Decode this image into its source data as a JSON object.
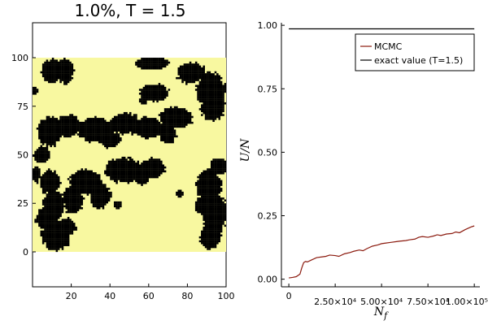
{
  "chart_data": [
    {
      "type": "heatmap",
      "title": "1.0%, T = 1.5",
      "grid_size": 100,
      "colors": {
        "spin_up": "#f8f8a0",
        "spin_down": "#000000"
      },
      "xlim": [
        0,
        100
      ],
      "ylim": [
        -18,
        118
      ],
      "xticks": [
        20,
        40,
        60,
        80,
        100
      ],
      "yticks": [
        0,
        25,
        50,
        75,
        100
      ],
      "xtick_labels": [
        "20",
        "40",
        "60",
        "80",
        "100"
      ],
      "ytick_labels": [
        "0",
        "25",
        "50",
        "75",
        "100"
      ],
      "black_regions": [
        {
          "cx": 10,
          "cy": 93,
          "rx": 5,
          "ry": 6
        },
        {
          "cx": 17,
          "cy": 93,
          "rx": 4,
          "ry": 6
        },
        {
          "cx": 62,
          "cy": 97,
          "rx": 8,
          "ry": 3
        },
        {
          "cx": 82,
          "cy": 92,
          "rx": 7,
          "ry": 5
        },
        {
          "cx": 92,
          "cy": 83,
          "rx": 7,
          "ry": 9
        },
        {
          "cx": 93,
          "cy": 75,
          "rx": 6,
          "ry": 7
        },
        {
          "cx": 63,
          "cy": 82,
          "rx": 7,
          "ry": 4
        },
        {
          "cx": 9,
          "cy": 62,
          "rx": 6,
          "ry": 7
        },
        {
          "cx": 18,
          "cy": 65,
          "rx": 7,
          "ry": 5
        },
        {
          "cx": 33,
          "cy": 63,
          "rx": 9,
          "ry": 6
        },
        {
          "cx": 48,
          "cy": 66,
          "rx": 8,
          "ry": 5
        },
        {
          "cx": 60,
          "cy": 64,
          "rx": 7,
          "ry": 5
        },
        {
          "cx": 74,
          "cy": 69,
          "rx": 8,
          "ry": 5
        },
        {
          "cx": 70,
          "cy": 61,
          "rx": 4,
          "ry": 5
        },
        {
          "cx": 40,
          "cy": 58,
          "rx": 5,
          "ry": 4
        },
        {
          "cx": 5,
          "cy": 50,
          "rx": 4,
          "ry": 4
        },
        {
          "cx": 47,
          "cy": 42,
          "rx": 9,
          "ry": 6
        },
        {
          "cx": 62,
          "cy": 43,
          "rx": 6,
          "ry": 5
        },
        {
          "cx": 56,
          "cy": 39,
          "rx": 4,
          "ry": 4
        },
        {
          "cx": 27,
          "cy": 36,
          "rx": 8,
          "ry": 6
        },
        {
          "cx": 35,
          "cy": 29,
          "rx": 5,
          "ry": 6
        },
        {
          "cx": 21,
          "cy": 27,
          "rx": 5,
          "ry": 7
        },
        {
          "cx": 9,
          "cy": 36,
          "rx": 5,
          "ry": 6
        },
        {
          "cx": 11,
          "cy": 24,
          "rx": 5,
          "ry": 7
        },
        {
          "cx": 12,
          "cy": 9,
          "rx": 7,
          "ry": 8
        },
        {
          "cx": 7,
          "cy": 17,
          "rx": 5,
          "ry": 5
        },
        {
          "cx": 18,
          "cy": 13,
          "rx": 4,
          "ry": 4
        },
        {
          "cx": 91,
          "cy": 34,
          "rx": 6,
          "ry": 8
        },
        {
          "cx": 94,
          "cy": 20,
          "rx": 6,
          "ry": 10
        },
        {
          "cx": 92,
          "cy": 8,
          "rx": 5,
          "ry": 6
        },
        {
          "cx": 96,
          "cy": 44,
          "rx": 4,
          "ry": 4
        },
        {
          "cx": 87,
          "cy": 24,
          "rx": 3,
          "ry": 4
        },
        {
          "cx": 2,
          "cy": 40,
          "rx": 2,
          "ry": 4
        },
        {
          "cx": 1,
          "cy": 83,
          "rx": 1.5,
          "ry": 2
        },
        {
          "cx": 44,
          "cy": 24,
          "rx": 2,
          "ry": 2
        },
        {
          "cx": 76,
          "cy": 30,
          "rx": 2,
          "ry": 2
        },
        {
          "cx": 57,
          "cy": 78,
          "rx": 2,
          "ry": 2
        }
      ]
    },
    {
      "type": "line",
      "xlabel": "N_f",
      "ylabel": "U/N",
      "xlim": [
        -4000,
        103000
      ],
      "ylim": [
        -0.03,
        1.01
      ],
      "xticks": [
        0,
        25000,
        50000,
        75000,
        100000
      ],
      "xtick_labels": [
        "0",
        "2.50×10⁴",
        "5.00×10⁴",
        "7.50×10⁴",
        "1.00×10⁵"
      ],
      "yticks": [
        0.0,
        0.25,
        0.5,
        0.75,
        1.0
      ],
      "ytick_labels": [
        "0.00",
        "0.25",
        "0.50",
        "0.75",
        "1.00"
      ],
      "legend_position": "top-right",
      "series": [
        {
          "name": "MCMC",
          "color": "#8b1a0e",
          "x": [
            0,
            2000,
            4000,
            6000,
            7000,
            8000,
            9000,
            10000,
            12000,
            15000,
            18000,
            20000,
            22000,
            25000,
            27000,
            30000,
            33000,
            35000,
            38000,
            40000,
            42000,
            45000,
            48000,
            50000,
            52000,
            55000,
            58000,
            60000,
            63000,
            65000,
            68000,
            70000,
            72000,
            75000,
            78000,
            80000,
            82000,
            85000,
            88000,
            90000,
            92000,
            95000,
            98000,
            100000
          ],
          "y": [
            0.005,
            0.007,
            0.01,
            0.02,
            0.045,
            0.065,
            0.07,
            0.068,
            0.075,
            0.085,
            0.088,
            0.09,
            0.095,
            0.093,
            0.09,
            0.1,
            0.105,
            0.11,
            0.115,
            0.112,
            0.12,
            0.13,
            0.135,
            0.14,
            0.142,
            0.145,
            0.148,
            0.15,
            0.152,
            0.155,
            0.158,
            0.165,
            0.168,
            0.165,
            0.17,
            0.175,
            0.172,
            0.178,
            0.18,
            0.186,
            0.183,
            0.195,
            0.205,
            0.21
          ]
        },
        {
          "name": "exact value (T=1.5)",
          "color": "#000000",
          "x": [
            0,
            100000
          ],
          "y": [
            0.986,
            0.986
          ]
        }
      ]
    }
  ]
}
